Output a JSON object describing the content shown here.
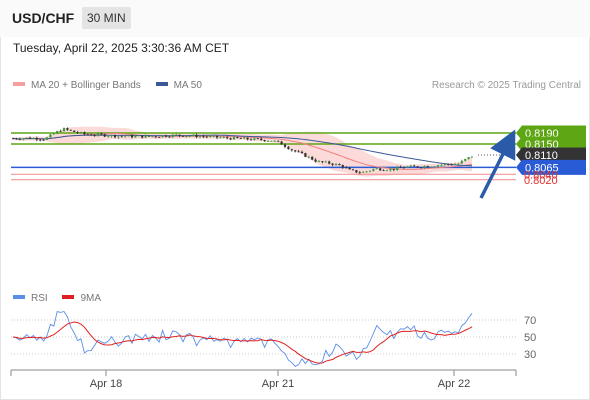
{
  "header": {
    "symbol": "USD/CHF",
    "interval": "30 MIN"
  },
  "timestamp": "Tuesday, April 22, 2025 3:30:36 AM CET",
  "legend": {
    "bollinger": "MA 20 + Bollinger Bands",
    "ma50": "MA 50",
    "rsi": "RSI",
    "rsi_ma": "9MA"
  },
  "credit": "Research © 2025 Trading Central",
  "colors": {
    "bollinger_band": "#fbd3d3",
    "ma20": "#f08080",
    "ma50": "#3b5998",
    "resistance": "#5ea614",
    "support": "#2a5bd7",
    "support_minor": "#f08a8a",
    "current": "#333333",
    "forecast_arrow": "#2a5ba8",
    "rsi": "#5b8ee6",
    "rsi_ma": "#e02020"
  },
  "levels": [
    {
      "label": "0.8190",
      "type": "resistance"
    },
    {
      "label": "0.8150",
      "type": "resistance"
    },
    {
      "label": "0.8110",
      "type": "current"
    },
    {
      "label": "0.8065",
      "type": "support"
    },
    {
      "label": "0.8040",
      "type": "support_minor"
    },
    {
      "label": "0.8020",
      "type": "support_minor"
    }
  ],
  "rsi_ticks": [
    "70",
    "50",
    "30"
  ],
  "x_labels": [
    "Apr 18",
    "Apr 21",
    "Apr 22"
  ]
}
